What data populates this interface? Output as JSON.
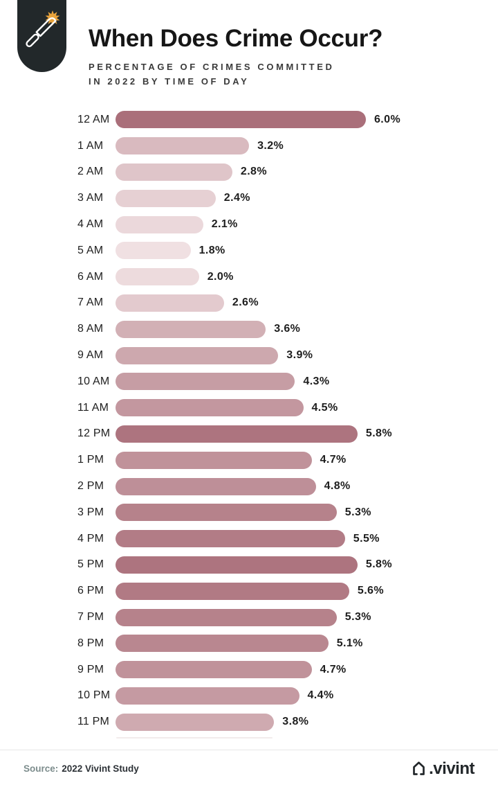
{
  "header": {
    "badge_icon": "knife-burst-icon",
    "title": "When Does Crime Occur?",
    "subtitle_line1": "PERCENTAGE OF CRIMES COMMITTED",
    "subtitle_line2": "IN 2022 BY TIME OF DAY"
  },
  "chart_data": {
    "type": "bar",
    "orientation": "horizontal",
    "title": "When Does Crime Occur?",
    "subtitle": "Percentage of crimes committed in 2022 by time of day",
    "unit": "%",
    "xlim": [
      0,
      6.0
    ],
    "grid": false,
    "legend": "none",
    "categories": [
      "12 AM",
      "1 AM",
      "2 AM",
      "3 AM",
      "4 AM",
      "5 AM",
      "6 AM",
      "7 AM",
      "8 AM",
      "9 AM",
      "10 AM",
      "11 AM",
      "12 PM",
      "1 PM",
      "2 PM",
      "3 PM",
      "4 PM",
      "5 PM",
      "6 PM",
      "7 PM",
      "8 PM",
      "9 PM",
      "10 PM",
      "11 PM"
    ],
    "values": [
      6.0,
      3.2,
      2.8,
      2.4,
      2.1,
      1.8,
      2.0,
      2.6,
      3.6,
      3.9,
      4.3,
      4.5,
      5.8,
      4.7,
      4.8,
      5.3,
      5.5,
      5.8,
      5.6,
      5.3,
      5.1,
      4.7,
      4.4,
      3.8
    ],
    "value_labels": [
      "6.0%",
      "3.2%",
      "2.8%",
      "2.4%",
      "2.1%",
      "1.8%",
      "2.0%",
      "2.6%",
      "3.6%",
      "3.9%",
      "4.3%",
      "4.5%",
      "5.8%",
      "4.7%",
      "4.8%",
      "5.3%",
      "5.5%",
      "5.8%",
      "5.6%",
      "5.3%",
      "5.1%",
      "4.7%",
      "4.4%",
      "3.8%"
    ],
    "bar_colors": [
      "#aa6f7a",
      "#d9babf",
      "#dfc5c9",
      "#e6d0d3",
      "#ebd8db",
      "#f0e0e2",
      "#eddbdd",
      "#e3cace",
      "#d2b0b5",
      "#cda8ae",
      "#c69da4",
      "#c3979f",
      "#ad747f",
      "#c0929a",
      "#be8f98",
      "#b6828b",
      "#b27c86",
      "#ad747f",
      "#b17a84",
      "#b6828b",
      "#b98790",
      "#c0929a",
      "#c59aa2",
      "#cfaab0"
    ],
    "color_scale": {
      "min_value": 1.8,
      "min_color": "#f0e0e2",
      "max_value": 6.0,
      "max_color": "#aa6f7a"
    }
  },
  "footer": {
    "source_label": "Source:",
    "source_text": "2022 Vivint Study",
    "brand_icon": "vivint-house-icon",
    "brand_text": ".vivint"
  },
  "colors": {
    "badge_bg": "#22282a",
    "burst": "#e8a33c",
    "title": "#161616",
    "subtitle": "#3a3a3a",
    "source_label": "#7c8c8c",
    "brand": "#22272a"
  }
}
